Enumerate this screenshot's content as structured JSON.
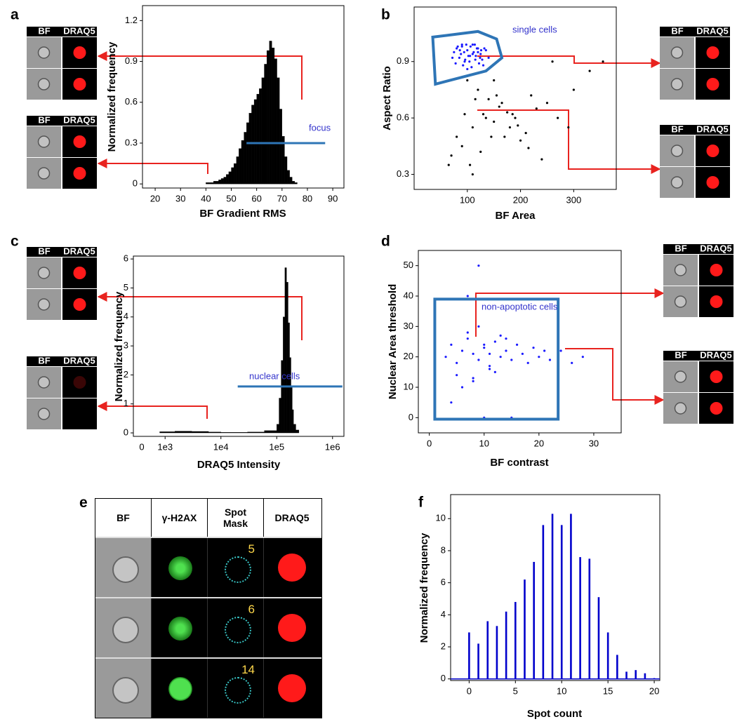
{
  "chart_data": [
    {
      "type": "histogram",
      "panel_label": "a",
      "x_label": "BF Gradient RMS",
      "y_label": "Normalized frequency",
      "bins": [
        40,
        41,
        42,
        43,
        44,
        45,
        46,
        47,
        48,
        49,
        50,
        51,
        52,
        53,
        54,
        55,
        56,
        57,
        58,
        59,
        60,
        61,
        62,
        63,
        64,
        65,
        66,
        67,
        68,
        69,
        70,
        71,
        72,
        73,
        74,
        75,
        76
      ],
      "values": [
        0.01,
        0.01,
        0.01,
        0.02,
        0.02,
        0.03,
        0.04,
        0.05,
        0.07,
        0.09,
        0.12,
        0.15,
        0.2,
        0.26,
        0.32,
        0.38,
        0.45,
        0.52,
        0.58,
        0.62,
        0.66,
        0.7,
        0.78,
        0.88,
        0.98,
        1.05,
        1.0,
        0.92,
        0.78,
        0.55,
        0.35,
        0.2,
        0.1,
        0.05,
        0.02,
        0.01
      ],
      "color": "#000000",
      "xlim": [
        15,
        94.4
      ],
      "ylim": [
        -0.03,
        1.31
      ],
      "xticks": [
        20,
        30,
        40,
        50,
        60,
        70,
        80,
        90
      ],
      "yticks": [
        0,
        0.3,
        0.6,
        0.9,
        1.2
      ],
      "gate": {
        "shape": "line",
        "label": "focus",
        "color": "#2e75b6",
        "x": [
          56,
          87
        ],
        "y": 0.3
      },
      "galleries": [
        [
          "BF",
          "DRAQ5"
        ],
        [
          "BF",
          "DRAQ5"
        ]
      ]
    },
    {
      "type": "scatter",
      "panel_label": "b",
      "x_label": "BF Area",
      "y_label": "Aspect Ratio",
      "xlim": [
        0,
        380
      ],
      "ylim": [
        0.22,
        1.19
      ],
      "xticks": [
        100,
        200,
        300
      ],
      "yticks": [
        0.3,
        0.6,
        0.9
      ],
      "series": [
        {
          "color": "#000000",
          "x": [
            65,
            90,
            110,
            130,
            150,
            170,
            190,
            210,
            230,
            250,
            120,
            140,
            160,
            180,
            200,
            100,
            115,
            135,
            155,
            175,
            195,
            215,
            240,
            270,
            300,
            330,
            355,
            125,
            145,
            165,
            185,
            105,
            95,
            150,
            220,
            260,
            80,
            70,
            290,
            110
          ],
          "y": [
            0.35,
            0.45,
            0.55,
            0.62,
            0.58,
            0.5,
            0.6,
            0.52,
            0.65,
            0.68,
            0.75,
            0.7,
            0.66,
            0.55,
            0.48,
            0.8,
            0.7,
            0.6,
            0.72,
            0.63,
            0.56,
            0.44,
            0.38,
            0.6,
            0.75,
            0.85,
            0.9,
            0.42,
            0.5,
            0.68,
            0.62,
            0.35,
            0.62,
            0.8,
            0.72,
            0.9,
            0.5,
            0.4,
            0.55,
            0.3
          ]
        },
        {
          "color": "#1a1aff",
          "x": [
            75,
            80,
            85,
            90,
            95,
            100,
            105,
            110,
            115,
            120,
            125,
            130,
            135,
            140,
            78,
            88,
            98,
            108,
            118,
            128,
            82,
            92,
            102,
            112,
            122,
            132,
            86,
            96,
            106,
            116,
            126,
            72,
            94,
            104,
            114,
            124,
            100,
            110,
            90,
            120
          ],
          "y": [
            0.95,
            0.97,
            0.92,
            0.98,
            0.9,
            0.96,
            0.93,
            0.99,
            0.91,
            0.95,
            0.94,
            0.88,
            0.96,
            0.92,
            0.89,
            0.94,
            0.99,
            0.87,
            0.97,
            0.91,
            0.98,
            0.88,
            0.93,
            0.95,
            0.89,
            0.97,
            0.96,
            0.91,
            0.98,
            0.93,
            0.96,
            0.92,
            0.95,
            0.9,
            0.99,
            0.92,
            0.86,
            0.94,
            0.99,
            0.97
          ]
        }
      ],
      "gate": {
        "shape": "polygon",
        "label": "single cells",
        "color": "#2e75b6",
        "x": [
          35,
          120,
          155,
          165,
          135,
          40
        ],
        "y": [
          1.03,
          1.06,
          1.02,
          0.92,
          0.85,
          0.78
        ]
      },
      "galleries": [
        [
          "BF",
          "DRAQ5"
        ],
        [
          "BF",
          "DRAQ5"
        ]
      ]
    },
    {
      "type": "histogram",
      "panel_label": "c",
      "x_label": "DRAQ5 Intensity",
      "y_label": "Normalized frequency",
      "xscale": "log",
      "x_origin_label": "0",
      "bins": [
        800,
        1500,
        3000,
        6000,
        10000,
        30000,
        60000,
        100000,
        110000,
        120000,
        130000,
        140000,
        150000,
        160000,
        170000,
        180000,
        190000,
        200000,
        220000,
        250000
      ],
      "values": [
        0.04,
        0.06,
        0.05,
        0.03,
        0.02,
        0.03,
        0.08,
        0.3,
        1.2,
        2.5,
        4.0,
        5.7,
        5.2,
        3.8,
        2.6,
        1.6,
        0.8,
        0.3,
        0.1
      ],
      "color": "#000000",
      "xlim": [
        270,
        1600000
      ],
      "ylim": [
        -0.12,
        6.1
      ],
      "xticks": [
        {
          "value": 1000,
          "label": "1e3"
        },
        {
          "value": 10000,
          "label": "1e4"
        },
        {
          "value": 100000,
          "label": "1e5"
        },
        {
          "value": 1000000,
          "label": "1e6"
        }
      ],
      "yticks": [
        0,
        1,
        2,
        3,
        4,
        5,
        6
      ],
      "gate": {
        "shape": "line",
        "label": "nuclear cells",
        "color": "#2e75b6",
        "x": [
          20000,
          1500000
        ],
        "y": 1.6
      },
      "galleries": [
        [
          "BF",
          "DRAQ5"
        ],
        [
          "BF",
          "DRAQ5"
        ]
      ]
    },
    {
      "type": "scatter",
      "panel_label": "d",
      "x_label": "BF contrast",
      "y_label": "Nuclear Area threshold",
      "xlim": [
        -2,
        35
      ],
      "ylim": [
        -5,
        55
      ],
      "xticks": [
        0,
        10,
        20,
        30
      ],
      "yticks": [
        0,
        10,
        20,
        30,
        40,
        50
      ],
      "series": [
        {
          "color": "#1a1aff",
          "x": [
            3,
            4,
            5,
            6,
            7,
            8,
            9,
            10,
            11,
            12,
            13,
            14,
            15,
            16,
            17,
            18,
            19,
            20,
            21,
            22,
            5,
            7,
            9,
            11,
            13,
            8,
            10,
            6,
            12,
            14,
            24,
            26,
            28,
            9,
            7,
            4,
            15,
            10,
            8,
            11
          ],
          "y": [
            20,
            24,
            18,
            22,
            26,
            21,
            19,
            23,
            17,
            25,
            20,
            22,
            19,
            24,
            21,
            18,
            23,
            20,
            22,
            19,
            14,
            28,
            30,
            16,
            27,
            12,
            24,
            10,
            15,
            26,
            22,
            18,
            20,
            50,
            40,
            5,
            0,
            0,
            13,
            21
          ]
        }
      ],
      "gate": {
        "shape": "polygon",
        "label": "non-apoptotic cells",
        "color": "#2e75b6",
        "x": [
          1,
          23.5,
          23.5,
          1
        ],
        "y": [
          -0.5,
          -0.5,
          39,
          39
        ]
      },
      "galleries": [
        [
          "BF",
          "DRAQ5"
        ],
        [
          "BF",
          "DRAQ5"
        ]
      ]
    },
    {
      "type": "bar",
      "panel_label": "f",
      "x_label": "Spot count",
      "y_label": "Normalized frequency",
      "x": [
        0,
        1,
        2,
        3,
        4,
        5,
        6,
        7,
        8,
        9,
        10,
        11,
        12,
        13,
        14,
        15,
        16,
        17,
        18,
        19,
        20
      ],
      "values": [
        2.9,
        2.2,
        3.6,
        3.3,
        4.2,
        4.8,
        6.2,
        7.3,
        9.6,
        10.3,
        9.6,
        10.3,
        7.6,
        7.5,
        5.1,
        2.9,
        1.5,
        0.45,
        0.55,
        0.35,
        0.05
      ],
      "color": "#0000cc",
      "xlim": [
        -2,
        20.6
      ],
      "ylim": [
        -0.1,
        11.5
      ],
      "xticks": [
        0,
        5,
        10,
        15,
        20
      ],
      "yticks": [
        0,
        2,
        4,
        6,
        8,
        10
      ]
    }
  ],
  "image_grid": {
    "panel_label": "e",
    "headers": [
      "BF",
      "γ-H2AX",
      "Spot Mask",
      "DRAQ5"
    ],
    "spot_counts": [
      5,
      6,
      14
    ]
  }
}
